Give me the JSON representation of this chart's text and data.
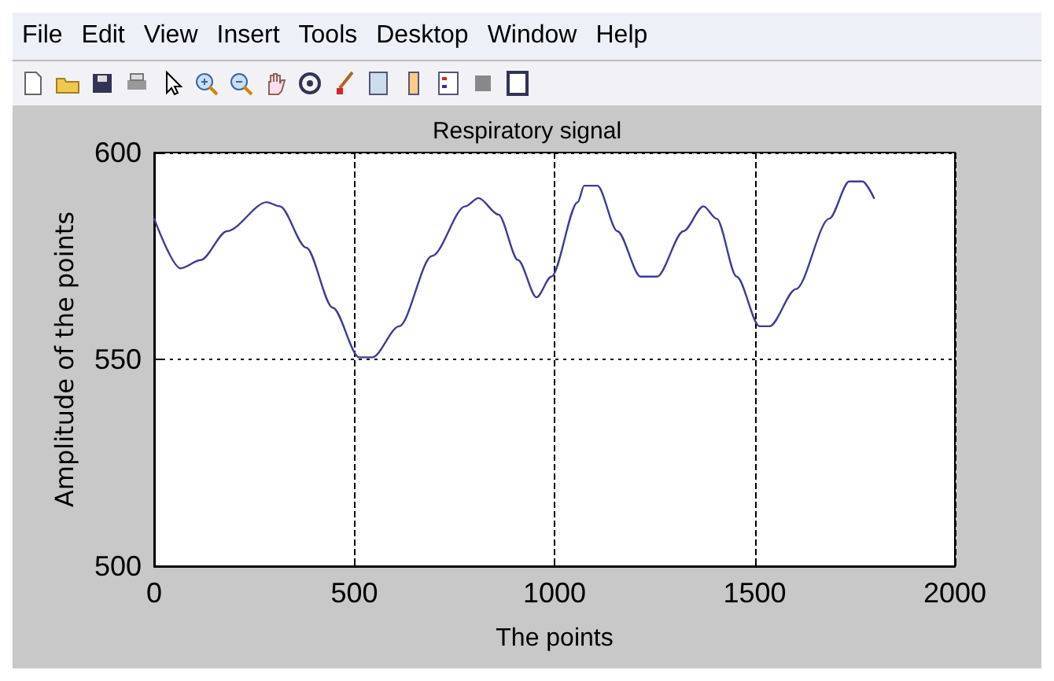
{
  "chart_data": {
    "type": "line",
    "title": "Respiratory signal",
    "xlabel": "The points",
    "ylabel": "Amplitude of the points",
    "annotations": [
      "File",
      "Edit",
      "View",
      "Insert",
      "Tools",
      "Desktop",
      "Window",
      "Help"
    ],
    "x": [
      0,
      66,
      116,
      182,
      281,
      314,
      380,
      446,
      512,
      545,
      612,
      694,
      777,
      810,
      860,
      909,
      955,
      992,
      1058,
      1074,
      1107,
      1157,
      1215,
      1256,
      1322,
      1372,
      1405,
      1455,
      1512,
      1537,
      1603,
      1686,
      1736,
      1769,
      1798
    ],
    "series": [
      {
        "color": "#3c3c96",
        "values": [
          584,
          572,
          574,
          581,
          588,
          587,
          577,
          562.5,
          550.5,
          550.5,
          558,
          575,
          587,
          589,
          585,
          574,
          565,
          570,
          588,
          592,
          592,
          581,
          570,
          570,
          581,
          587,
          584,
          570,
          558,
          558,
          567,
          584,
          593,
          593,
          589
        ]
      }
    ],
    "xlim": [
      0,
      2000
    ],
    "xticks": [
      0,
      500,
      1000,
      1500,
      2000
    ],
    "ylim": [
      500,
      600
    ],
    "yticks": [
      500,
      550,
      600
    ],
    "grid": true
  }
}
